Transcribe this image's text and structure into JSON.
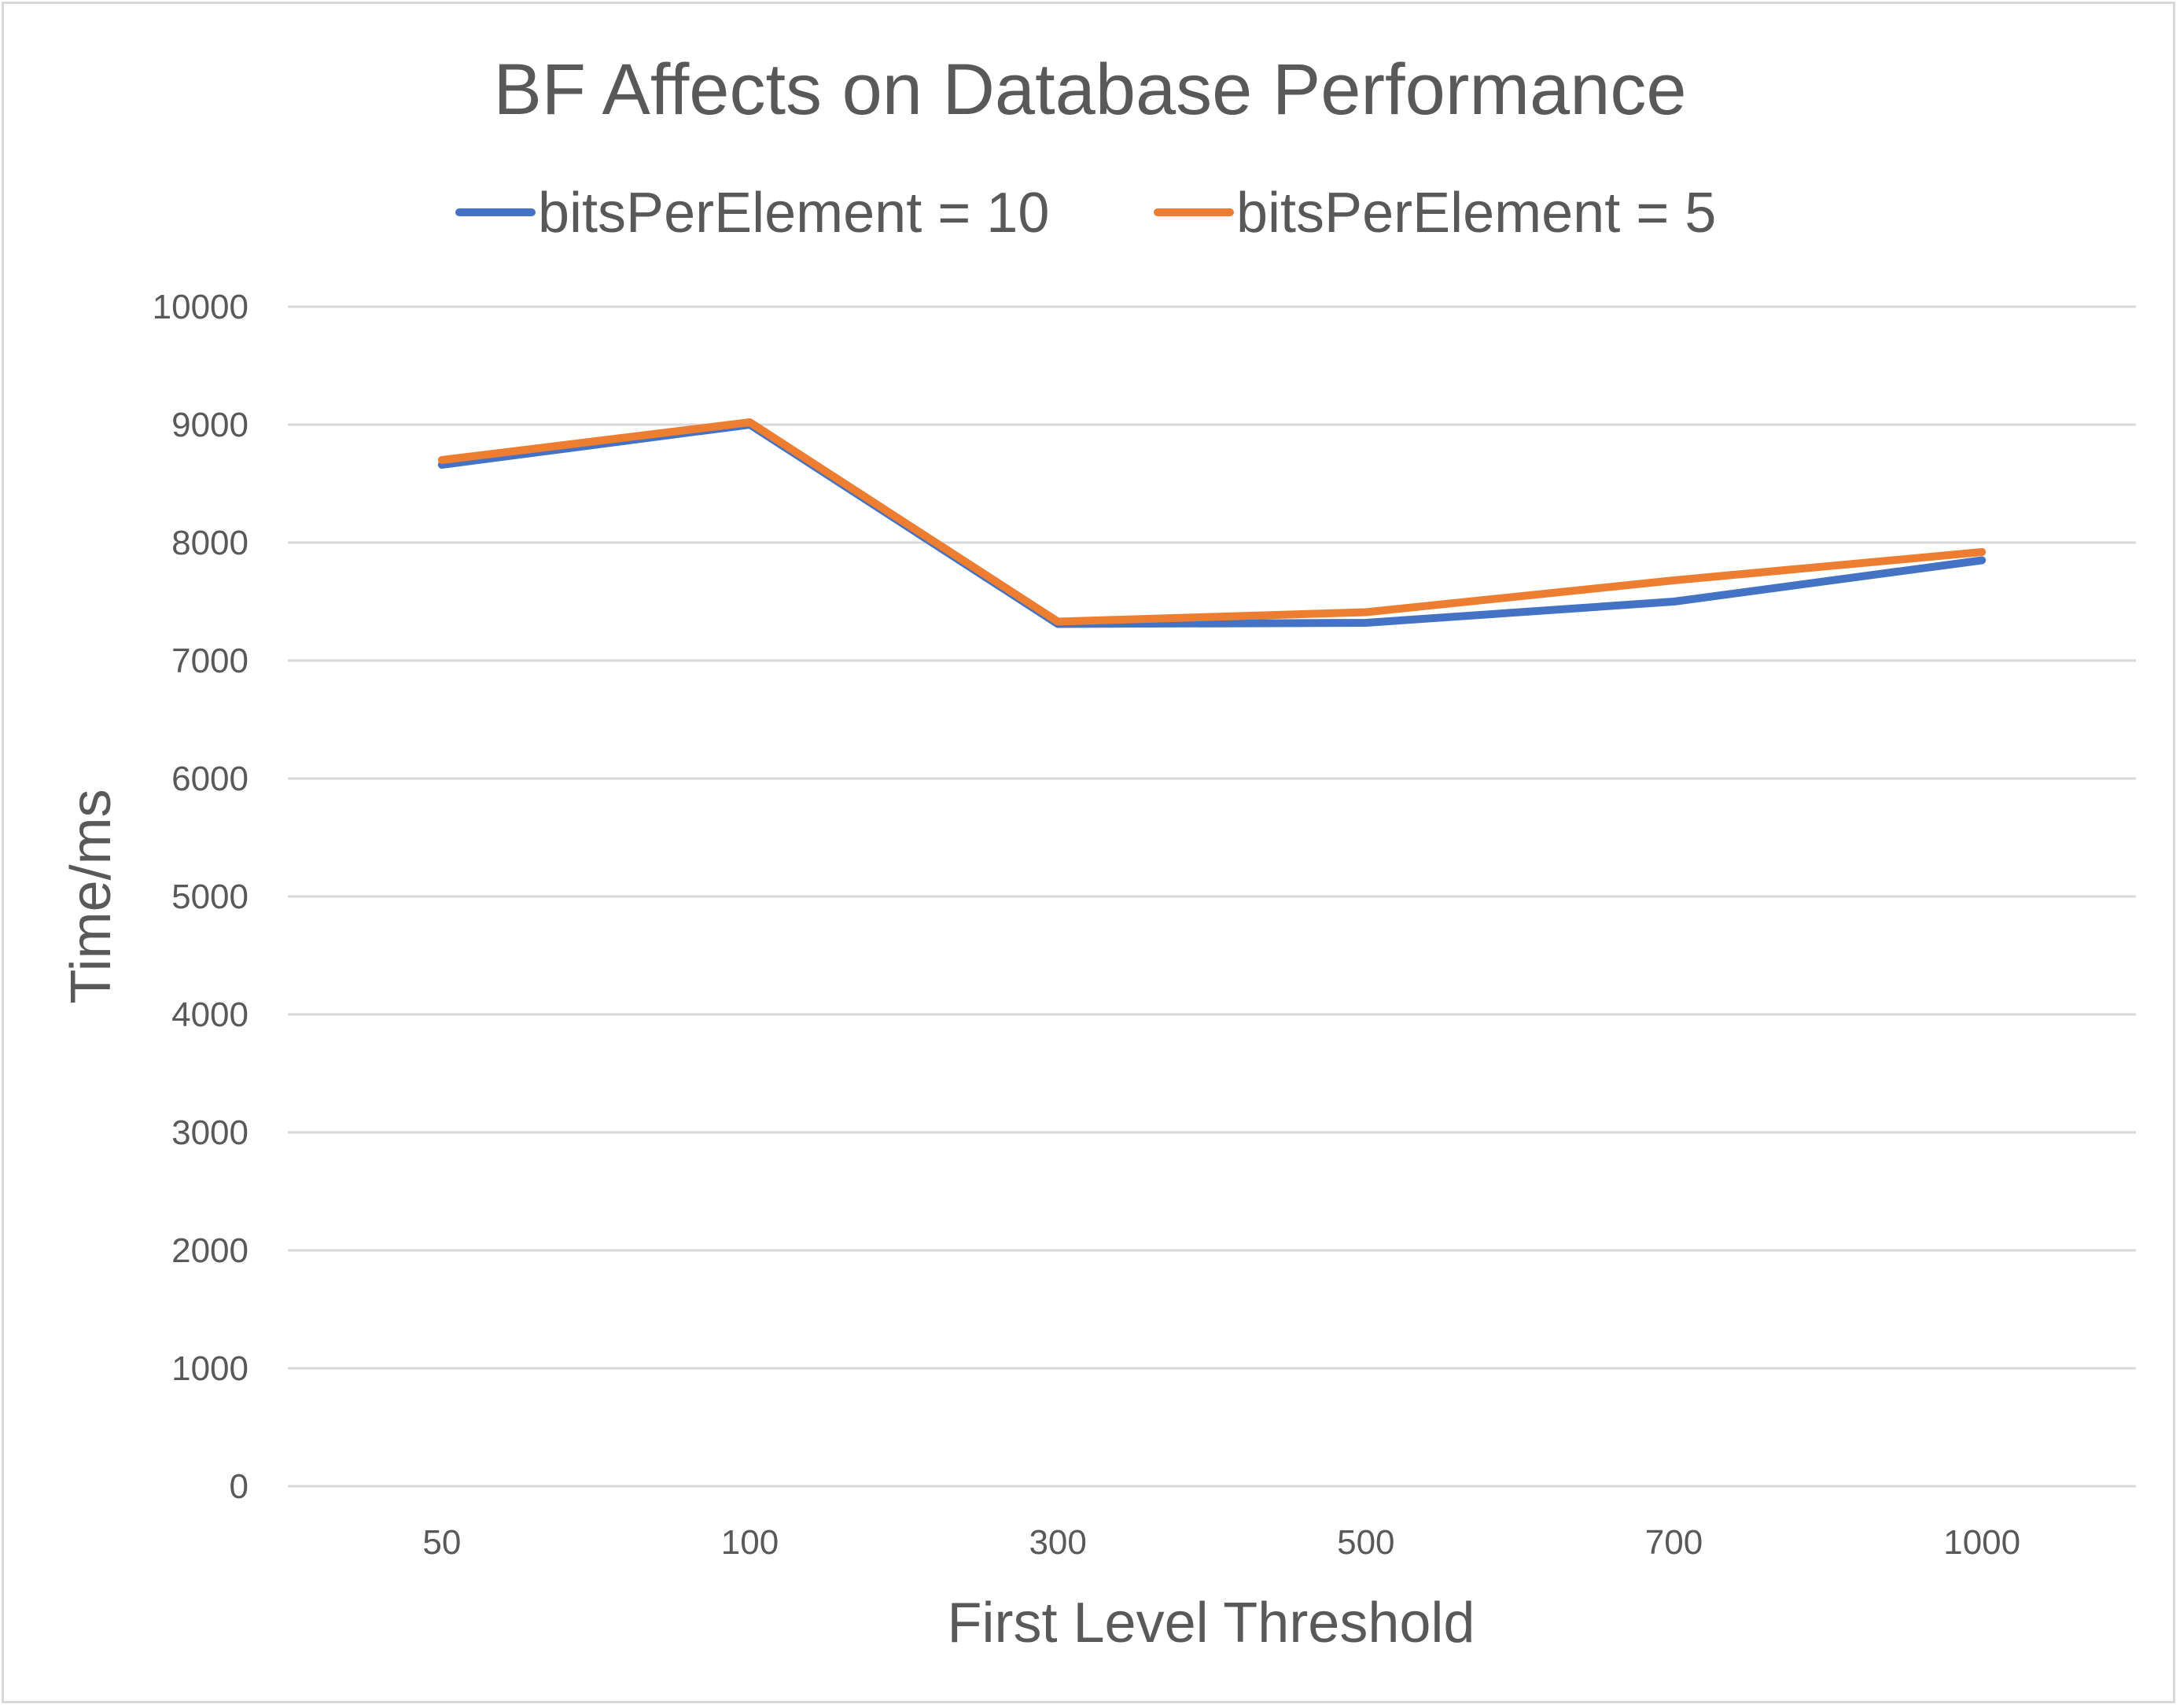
{
  "chart_data": {
    "type": "line",
    "title": "BF Affects on Database Performance",
    "xlabel": "First Level Threshold",
    "ylabel": "Time/ms",
    "categories": [
      "50",
      "100",
      "300",
      "500",
      "700",
      "1000"
    ],
    "ylim": [
      0,
      10000
    ],
    "yticks": [
      0,
      1000,
      2000,
      3000,
      4000,
      5000,
      6000,
      7000,
      8000,
      9000,
      10000
    ],
    "grid": "horizontal",
    "legend_position": "top",
    "series": [
      {
        "name": "bitsPerElement = 10",
        "color": "#4472c4",
        "values": [
          8660,
          9000,
          7310,
          7320,
          7500,
          7850
        ]
      },
      {
        "name": "bitsPerElement = 5",
        "color": "#ed7d31",
        "values": [
          8700,
          9020,
          7330,
          7410,
          7680,
          7920
        ]
      }
    ]
  }
}
